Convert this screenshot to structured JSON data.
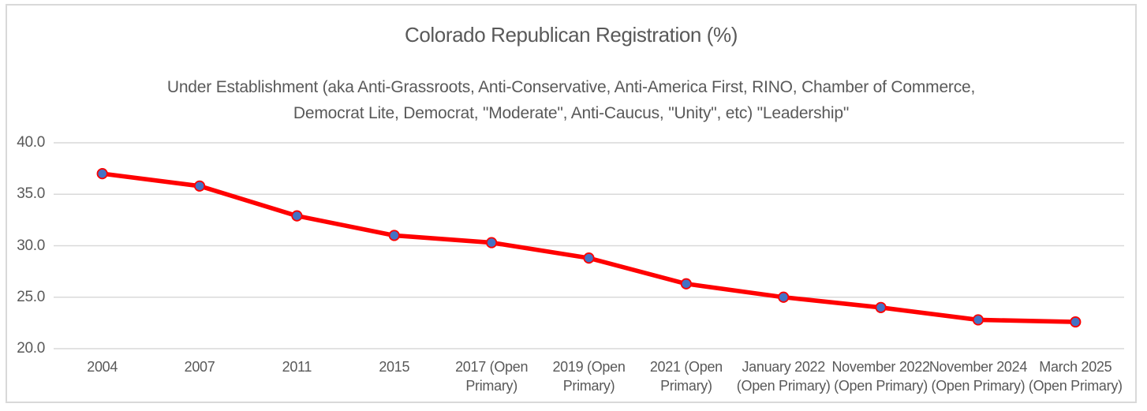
{
  "chart_data": {
    "type": "line",
    "title": "Colorado Republican Registration (%)",
    "subtitle_lines": [
      "Under Establishment (aka Anti-Grassroots, Anti-Conservative, Anti-America First, RINO, Chamber of Commerce,",
      "Democrat Lite, Democrat, \"Moderate\", Anti-Caucus, \"Unity\", etc) \"Leadership\""
    ],
    "categories": [
      "2004",
      "2007",
      "2011",
      "2015",
      "2017 (Open Primary)",
      "2019 (Open Primary)",
      "2021 (Open Primary)",
      "January 2022 (Open Primary)",
      "November 2022 (Open Primary)",
      "November 2024 (Open Primary)",
      "March 2025 (Open Primary)"
    ],
    "category_label_lines": [
      [
        "2004"
      ],
      [
        "2007"
      ],
      [
        "2011"
      ],
      [
        "2015"
      ],
      [
        "2017 (Open",
        "Primary)"
      ],
      [
        "2019 (Open",
        "Primary)"
      ],
      [
        "2021 (Open",
        "Primary)"
      ],
      [
        "January 2022",
        "(Open Primary)"
      ],
      [
        "November 2022",
        "(Open Primary)"
      ],
      [
        "November 2024",
        "(Open Primary)"
      ],
      [
        "March 2025",
        "(Open Primary)"
      ]
    ],
    "values": [
      37.0,
      35.8,
      32.9,
      31.0,
      30.3,
      28.8,
      26.3,
      25.0,
      24.0,
      22.8,
      22.6
    ],
    "y_ticks": [
      "40.0",
      "35.0",
      "30.0",
      "25.0",
      "20.0"
    ],
    "y_tick_values": [
      40.0,
      35.0,
      30.0,
      25.0,
      20.0
    ],
    "ylim": [
      20.0,
      40.0
    ],
    "xlabel": "",
    "ylabel": "",
    "grid": "horizontal",
    "legend": "none",
    "colors": {
      "line": "#ff0000",
      "marker_fill": "#4472c4",
      "marker_border": "#ff0000",
      "gridline": "#d9d9d9",
      "text": "#595959",
      "chart_border": "#d9d9d9",
      "background": "#ffffff"
    }
  }
}
